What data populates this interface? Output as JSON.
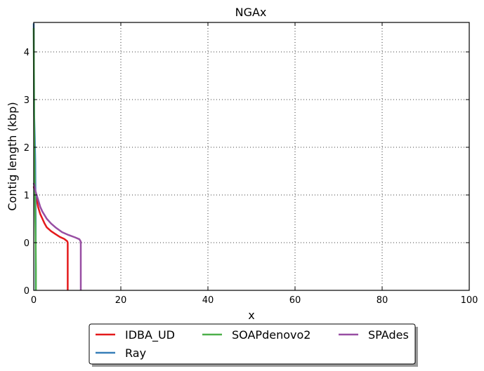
{
  "chart_data": {
    "type": "line",
    "title": "NGAx",
    "xlabel": "x",
    "ylabel": "Contig length  (kbp)",
    "xlim": [
      0,
      100
    ],
    "ylim_labels_note": "",
    "x_ticks": [
      "0",
      "20",
      "40",
      "60",
      "80",
      "100"
    ],
    "y_ticks": [
      "0",
      "0",
      "1",
      "2",
      "3",
      "4"
    ],
    "grid": true,
    "legend_position": "bottom-center",
    "series": [
      {
        "name": "IDBA_UD",
        "color": "#e41a1c",
        "points": [
          [
            0,
            1.18
          ],
          [
            0.4,
            1.0
          ],
          [
            0.7,
            0.9
          ],
          [
            1.0,
            0.75
          ],
          [
            1.5,
            0.6
          ],
          [
            2.0,
            0.5
          ],
          [
            2.5,
            0.4
          ],
          [
            3.0,
            0.32
          ],
          [
            4.0,
            0.24
          ],
          [
            5.0,
            0.18
          ],
          [
            6.0,
            0.12
          ],
          [
            7.0,
            0.08
          ],
          [
            7.7,
            0.03
          ],
          [
            7.8,
            0.0
          ],
          [
            7.8,
            -1.0
          ]
        ]
      },
      {
        "name": "Ray",
        "color": "#377eb8",
        "points": [
          [
            0,
            4.6
          ],
          [
            0.1,
            2.7
          ],
          [
            0.25,
            2.2
          ],
          [
            0.35,
            1.7
          ],
          [
            0.4,
            1.0
          ],
          [
            0.45,
            0.45
          ],
          [
            0.45,
            -1.0
          ]
        ]
      },
      {
        "name": "SOAPdenovo2",
        "color": "#4daf4a",
        "points": [
          [
            0,
            4.5
          ],
          [
            0.1,
            2.5
          ],
          [
            0.2,
            1.5
          ],
          [
            0.3,
            0.8
          ],
          [
            0.4,
            0.3
          ],
          [
            0.5,
            -0.55
          ],
          [
            0.5,
            -1.0
          ]
        ]
      },
      {
        "name": "SPAdes",
        "color": "#984ea3",
        "points": [
          [
            0,
            1.25
          ],
          [
            0.5,
            1.05
          ],
          [
            1.0,
            0.9
          ],
          [
            1.5,
            0.75
          ],
          [
            2.0,
            0.65
          ],
          [
            3.0,
            0.5
          ],
          [
            4.0,
            0.4
          ],
          [
            5.0,
            0.32
          ],
          [
            6.5,
            0.22
          ],
          [
            8.0,
            0.16
          ],
          [
            9.5,
            0.11
          ],
          [
            10.5,
            0.07
          ],
          [
            10.8,
            0.02
          ],
          [
            10.8,
            -1.0
          ]
        ]
      }
    ]
  }
}
